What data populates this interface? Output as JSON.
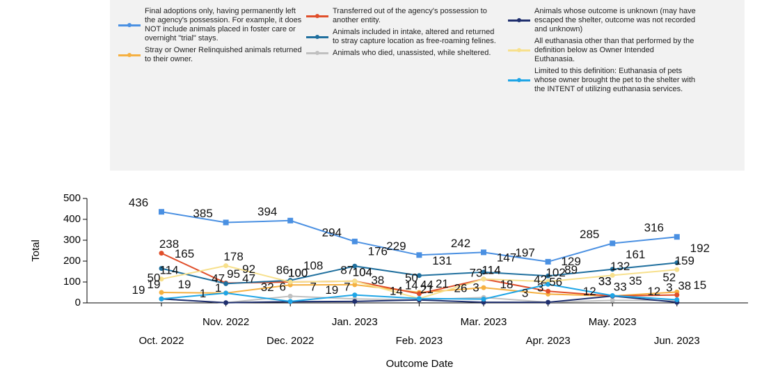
{
  "chart_data": {
    "type": "line",
    "x_label": "Outcome Date",
    "y_label": "Total",
    "categories": [
      "Oct. 2022",
      "Nov. 2022",
      "Dec. 2022",
      "Jan. 2023",
      "Feb. 2023",
      "Mar. 2023",
      "Apr. 2023",
      "May. 2023",
      "Jun. 2023"
    ],
    "ylim": [
      0,
      500
    ],
    "yticks": [
      0,
      100,
      200,
      300,
      400,
      500
    ],
    "series": [
      {
        "name": "Final adoptions only, having permanently left the agency's possession. For example, it does NOT include animals placed in foster care or overnight \"trial\" stays.",
        "color": "#4a90e2",
        "marker": "square",
        "values": [
          436,
          385,
          394,
          294,
          229,
          242,
          197,
          285,
          316
        ]
      },
      {
        "name": "Stray or Owner Relinquished animals returned to their owner.",
        "color": "#f5b041",
        "marker": "circle",
        "values": [
          50,
          47,
          86,
          87,
          50,
          73,
          42,
          33,
          52
        ]
      },
      {
        "name": "Transferred out of the agency's possession to another entity.",
        "color": "#e04e2a",
        "marker": "circle",
        "values": [
          238,
          95,
          100,
          104,
          44,
          114,
          56,
          33,
          38
        ]
      },
      {
        "name": "Animals included in intake, altered and returned to stray capture location as free-roaming felines.",
        "color": "#1f6f9e",
        "marker": "circle",
        "values": [
          165,
          92,
          108,
          176,
          131,
          147,
          129,
          161,
          192
        ]
      },
      {
        "name": "Animals who died, unassisted, while sheltered.",
        "color": "#c0c0c0",
        "marker": "circle",
        "values": [
          19,
          1,
          32,
          19,
          14,
          26,
          3,
          12,
          12
        ]
      },
      {
        "name": "Animals whose outcome is unknown (may have escaped the shelter, outcome was not recorded and unknown)",
        "color": "#1f2f6e",
        "marker": "circle",
        "values": [
          19,
          1,
          6,
          7,
          14,
          3,
          3,
          33,
          3
        ]
      },
      {
        "name": "All euthanasia other than that performed by the definition below as Owner Intended Euthanasia.",
        "color": "#f7e08c",
        "marker": "circle",
        "values": [
          114,
          178,
          100,
          104,
          21,
          114,
          102,
          132,
          159
        ]
      },
      {
        "name": "Limited to this definition: Euthanasia of pets whose owner brought the pet to the shelter with the INTENT of utilizing euthanasia services.",
        "color": "#1ea5e6",
        "marker": "circle",
        "values": [
          19,
          47,
          7,
          38,
          21,
          18,
          89,
          35,
          15
        ]
      }
    ]
  }
}
